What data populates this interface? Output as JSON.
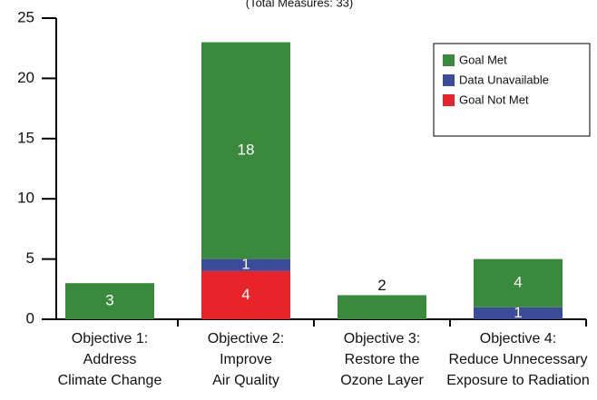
{
  "chart_data": {
    "type": "stacked_bar",
    "subtitle": "(Total Measures: 33)",
    "categories": [
      [
        "Objective 1:",
        "Address",
        "Climate Change"
      ],
      [
        "Objective 2:",
        "Improve",
        "Air Quality"
      ],
      [
        "Objective 3:",
        "Restore the",
        "Ozone Layer"
      ],
      [
        "Objective 4:",
        "Reduce Unnecessary",
        "Exposure to Radiation"
      ]
    ],
    "series": [
      {
        "name": "Goal Not Met",
        "color": "#e8232a",
        "values": [
          0,
          4,
          0,
          0
        ]
      },
      {
        "name": "Data Unavailable",
        "color": "#3d4b9b",
        "values": [
          0,
          1,
          0,
          1
        ]
      },
      {
        "name": "Goal Met",
        "color": "#3a8a3e",
        "values": [
          3,
          18,
          2,
          4
        ]
      }
    ],
    "ylim": [
      0,
      25
    ],
    "yticks": [
      0,
      5,
      10,
      15,
      20,
      25
    ],
    "legend": "upper right"
  }
}
